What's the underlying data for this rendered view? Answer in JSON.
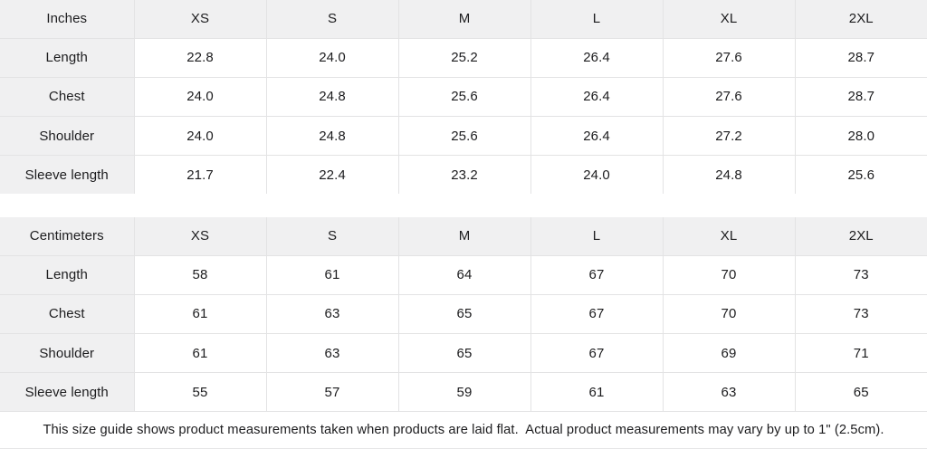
{
  "tables": [
    {
      "unit_label": "Inches",
      "sizes": [
        "XS",
        "S",
        "M",
        "L",
        "XL",
        "2XL"
      ],
      "rows": [
        {
          "label": "Length",
          "values": [
            "22.8",
            "24.0",
            "25.2",
            "26.4",
            "27.6",
            "28.7"
          ]
        },
        {
          "label": "Chest",
          "values": [
            "24.0",
            "24.8",
            "25.6",
            "26.4",
            "27.6",
            "28.7"
          ]
        },
        {
          "label": "Shoulder",
          "values": [
            "24.0",
            "24.8",
            "25.6",
            "26.4",
            "27.2",
            "28.0"
          ]
        },
        {
          "label": "Sleeve length",
          "values": [
            "21.7",
            "22.4",
            "23.2",
            "24.0",
            "24.8",
            "25.6"
          ]
        }
      ]
    },
    {
      "unit_label": "Centimeters",
      "sizes": [
        "XS",
        "S",
        "M",
        "L",
        "XL",
        "2XL"
      ],
      "rows": [
        {
          "label": "Length",
          "values": [
            "58",
            "61",
            "64",
            "67",
            "70",
            "73"
          ]
        },
        {
          "label": "Chest",
          "values": [
            "61",
            "63",
            "65",
            "67",
            "70",
            "73"
          ]
        },
        {
          "label": "Shoulder",
          "values": [
            "61",
            "63",
            "65",
            "67",
            "69",
            "71"
          ]
        },
        {
          "label": "Sleeve length",
          "values": [
            "55",
            "57",
            "59",
            "61",
            "63",
            "65"
          ]
        }
      ]
    }
  ],
  "footer": {
    "note": "This size guide shows product measurements taken when products are laid flat.  Actual product measurements may vary by up to 1\" (2.5cm)."
  },
  "layout_colors": {
    "header_bg": "#f0f0f1",
    "border": "#e3e3e4",
    "text": "#1c1c1e",
    "background": "#ffffff"
  }
}
